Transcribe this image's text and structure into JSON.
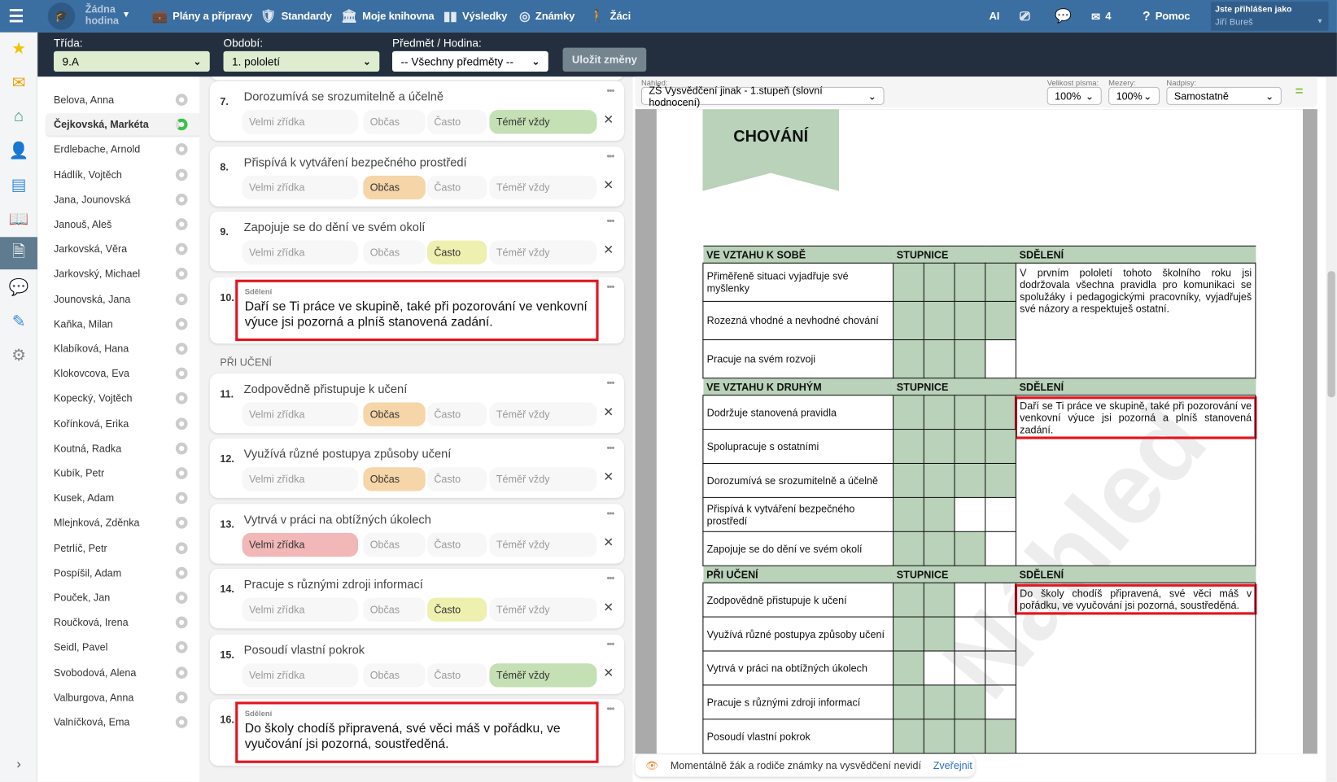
{
  "topbar": {
    "lesson": "Žádna hodina",
    "nav": [
      {
        "label": "Plány a přípravy",
        "icon": "briefcase-icon"
      },
      {
        "label": "Standardy",
        "icon": "shield-icon"
      },
      {
        "label": "Moje knihovna",
        "icon": "library-icon"
      },
      {
        "label": "Výsledky",
        "icon": "bar-chart-icon"
      },
      {
        "label": "Známky",
        "icon": "grades-icon"
      },
      {
        "label": "Žáci",
        "icon": "pupils-icon"
      }
    ],
    "ai": "AI",
    "mail_count": "4",
    "help": "Pomoc",
    "logged_in_label": "Jste přihlášen jako",
    "user": "Jiří Bureš"
  },
  "filters": {
    "class_label": "Třída:",
    "class_value": "9.A",
    "period_label": "Období:",
    "period_value": "1. pololetí",
    "subject_label": "Předmět / Hodina:",
    "subject_value": "-- Všechny předměty --",
    "save": "Uložit změny"
  },
  "students": [
    "Belova, Anna",
    "Čejkovská, Markéta",
    "Erdlebache, Arnold",
    "Hádlík, Vojtěch",
    "Jana, Jounovská",
    "Janouš, Aleš",
    "Jarkovská, Věra",
    "Jarkovský, Michael",
    "Jounovská, Jana",
    "Kaňka, Milan",
    "Klabíková, Hana",
    "Klokovcova, Eva",
    "Kopecký, Vojtěch",
    "Kořínková, Erika",
    "Koutná, Radka",
    "Kubík, Petr",
    "Kusek, Adam",
    "Mlejnková, Zděnka",
    "Petrlíč, Petr",
    "Pospíšil, Adam",
    "Pouček, Jan",
    "Roučková, Irena",
    "Seidl, Pavel",
    "Svobodová, Alena",
    "Valburgova, Anna",
    "Valníčková, Ema"
  ],
  "active_student": "Čejkovská, Markéta",
  "scale_options": [
    "Velmi zřídka",
    "Občas",
    "Často",
    "Téměř vždy"
  ],
  "scale_colors": [
    "#f2b8b8",
    "#f6d5a8",
    "#eef0b0",
    "#c5e0b4"
  ],
  "form": {
    "section_learning": "PŘI UČENÍ",
    "comment_label": "Sdělení",
    "items": [
      {
        "num": "7.",
        "title": "Dorozumívá se srozumitelně a účelně",
        "selected": 4
      },
      {
        "num": "8.",
        "title": "Přispívá k vytváření bezpečného prostředí",
        "selected": 2
      },
      {
        "num": "9.",
        "title": "Zapojuje se do dění ve svém okolí",
        "selected": 3
      },
      {
        "num": "10.",
        "comment": "Daří se Ti práce ve skupině, také při pozorování ve venkovní výuce jsi pozorná a plníš stanovená zadání."
      },
      {
        "num": "11.",
        "title": "Zodpovědně přistupuje k učení",
        "selected": 2
      },
      {
        "num": "12.",
        "title": "Využívá různé postupya způsoby učení",
        "selected": 2
      },
      {
        "num": "13.",
        "title": "Vytrvá v práci na obtížných úkolech",
        "selected": 1
      },
      {
        "num": "14.",
        "title": "Pracuje s různými zdroji informací",
        "selected": 3
      },
      {
        "num": "15.",
        "title": "Posoudí vlastní pokrok",
        "selected": 4
      },
      {
        "num": "16.",
        "comment": "Do školy chodíš připravená, své věci máš v pořádku, ve vyučování jsi pozorná, soustředěná."
      }
    ]
  },
  "preview": {
    "view_label": "Náhled:",
    "view_value": "ZŠ Vysvědčení jinak - 1.stupeň (slovní hodnocení)",
    "font_label": "Velikost písma:",
    "font_value": "100%",
    "spacing_label": "Mezery:",
    "spacing_value": "100%",
    "headings_label": "Nadpisy:",
    "headings_value": "Samostatně",
    "watermark": "Náhled",
    "doc": {
      "title": "CHOVÁNÍ",
      "scale_header": "STUPNICE",
      "message_header": "SDĚLENÍ",
      "sections": [
        {
          "name": "VE VZTAHU K SOBĚ",
          "message": "V prvním pololetí tohoto školního roku jsi dodržovala všechna pravidla pro komunikaci se spolužáky i pedagogickými pracovníky, vyjadřuješ své názory a respektuješ ostatní.",
          "highlight": false,
          "rows": [
            {
              "label": "Přiměřeně situaci vyjadřuje své myšlenky",
              "level": 4
            },
            {
              "label": "Rozezná vhodné a nevhodné chování",
              "level": 4
            },
            {
              "label": "Pracuje na svém rozvoji",
              "level": 3
            }
          ]
        },
        {
          "name": "VE VZTAHU K DRUHÝM",
          "message": "Daří se Ti práce ve skupině, také při pozorování ve venkovní výuce jsi pozorná a plníš stanovená zadání.",
          "highlight": true,
          "rows": [
            {
              "label": "Dodržuje stanovená pravidla",
              "level": 4
            },
            {
              "label": "Spolupracuje s ostatními",
              "level": 4
            },
            {
              "label": "Dorozumívá se srozumitelně a účelně",
              "level": 4
            },
            {
              "label": "Přispívá k vytváření bezpečného prostředí",
              "level": 2
            },
            {
              "label": "Zapojuje se do dění ve svém okolí",
              "level": 3
            }
          ]
        },
        {
          "name": "PŘI UČENÍ",
          "message": "Do školy chodíš připravená, své věci máš v pořádku, ve vyučování jsi pozorná, soustředěná.",
          "highlight": true,
          "rows": [
            {
              "label": "Zodpovědně přistupuje k učení",
              "level": 2
            },
            {
              "label": "Využívá různé postupya způsoby učení",
              "level": 2
            },
            {
              "label": "Vytrvá v práci na obtížných úkolech",
              "level": 1
            },
            {
              "label": "Pracuje s různými zdroji informací",
              "level": 3
            },
            {
              "label": "Posoudí vlastní pokrok",
              "level": 4
            }
          ]
        }
      ]
    },
    "notice": "Momentálně žák a rodiče známky na vysvědčení nevidí",
    "publish": "Zveřejnit"
  }
}
